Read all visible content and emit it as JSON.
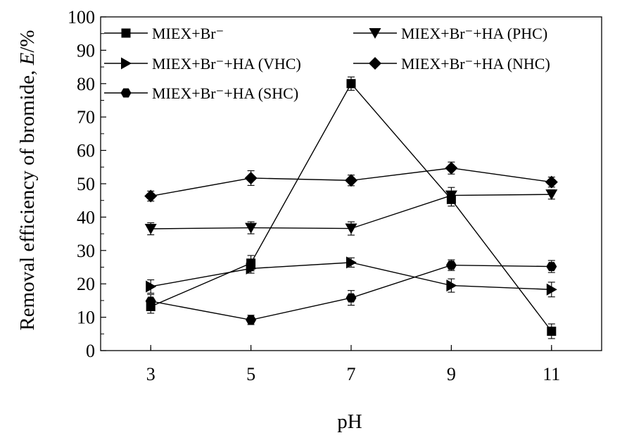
{
  "chart_data": {
    "type": "line",
    "xlabel": "pH",
    "ylabel_parts": [
      "Removal efficiency of bromide, ",
      "E",
      "/%"
    ],
    "x": [
      3,
      5,
      7,
      9,
      11
    ],
    "x_tick_labels": [
      "3",
      "5",
      "7",
      "9",
      "11"
    ],
    "xlim": [
      2,
      12
    ],
    "ylim": [
      0,
      100
    ],
    "y_ticks": [
      0,
      10,
      20,
      30,
      40,
      50,
      60,
      70,
      80,
      90,
      100
    ],
    "y_tick_labels": [
      "0",
      "10",
      "20",
      "30",
      "40",
      "50",
      "60",
      "70",
      "80",
      "90",
      "100"
    ],
    "grid": false,
    "legend_position": "top",
    "series": [
      {
        "name": "MIEX+Br⁻",
        "marker": "square",
        "values": [
          13.2,
          26.2,
          80.0,
          45.3,
          5.8
        ],
        "errors": [
          2.0,
          2.3,
          2.0,
          2.0,
          2.2
        ]
      },
      {
        "name": "MIEX+Br⁻+HA (PHC)",
        "marker": "triangle-down",
        "values": [
          36.5,
          36.8,
          36.6,
          46.5,
          46.8
        ],
        "errors": [
          1.8,
          1.8,
          2.0,
          2.4,
          1.4
        ]
      },
      {
        "name": "MIEX+Br⁻+HA (VHC)",
        "marker": "triangle-right",
        "values": [
          19.2,
          24.6,
          26.4,
          19.5,
          18.3
        ],
        "errors": [
          2.0,
          1.4,
          1.4,
          2.0,
          2.2
        ]
      },
      {
        "name": "MIEX+Br⁻+HA (NHC)",
        "marker": "diamond",
        "values": [
          46.3,
          51.7,
          51.0,
          54.7,
          50.5
        ],
        "errors": [
          1.5,
          2.2,
          1.6,
          1.8,
          1.5
        ]
      },
      {
        "name": "MIEX+Br⁻+HA (SHC)",
        "marker": "hexagon",
        "values": [
          14.8,
          9.2,
          15.8,
          25.6,
          25.2
        ],
        "errors": [
          2.0,
          1.4,
          2.2,
          1.6,
          1.8
        ]
      }
    ]
  }
}
